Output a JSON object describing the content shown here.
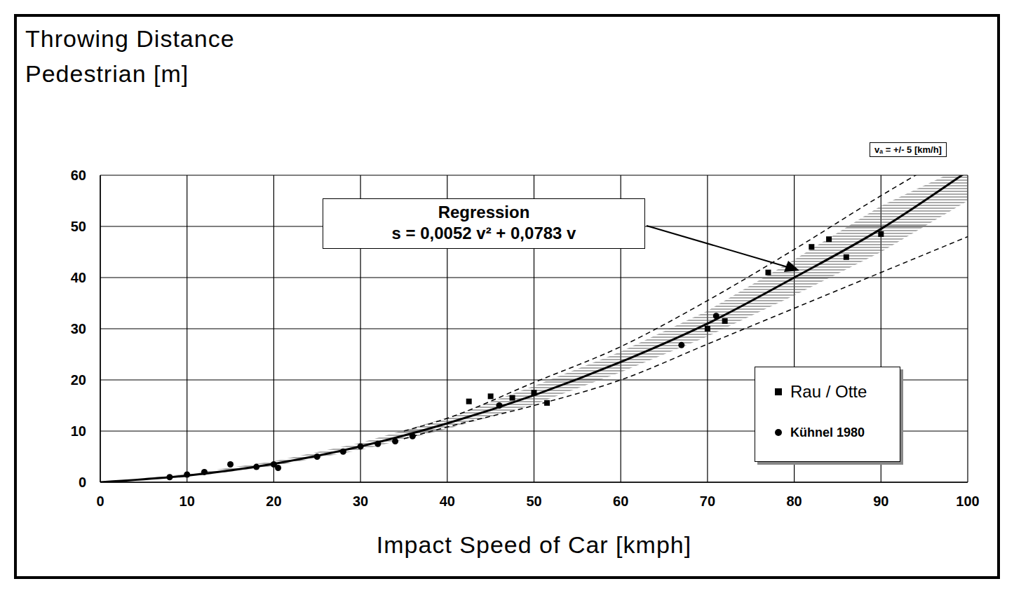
{
  "chart_data": {
    "type": "scatter",
    "y_label": "Throwing Distance Pedestrian [m]",
    "x_label": "Impact Speed of Car [kmph]",
    "annotation": {
      "title": "Regression",
      "text": "s = 0,0052 v² + 0,0783 v"
    },
    "note": "vₐ = +/- 5 [km/h]",
    "xlim": [
      0,
      100
    ],
    "xticks": [
      0,
      10,
      20,
      30,
      40,
      50,
      60,
      70,
      80,
      90,
      100
    ],
    "ylim": [
      0,
      60
    ],
    "yticks": [
      0,
      10,
      20,
      30,
      40,
      50,
      60
    ],
    "grid": true,
    "legend": "lower right",
    "series": [
      {
        "name": "Rau / Otte",
        "type": "scatter",
        "marker": "square",
        "color": "#000000",
        "x": [
          42.5,
          45,
          47.5,
          50,
          51.5,
          70,
          72,
          77,
          82,
          84,
          86,
          90
        ],
        "values": [
          15.8,
          16.8,
          16.5,
          17.5,
          15.5,
          30,
          31.5,
          41,
          46,
          47.5,
          44,
          48.5
        ]
      },
      {
        "name": "Kühnel 1980",
        "type": "scatter",
        "marker": "circle",
        "color": "#000000",
        "x": [
          8,
          10,
          12,
          15,
          18,
          20,
          20.5,
          25,
          28,
          30,
          32,
          34,
          36,
          46,
          67,
          71
        ],
        "values": [
          1,
          1.5,
          2,
          3.5,
          3,
          3.5,
          2.8,
          5,
          6,
          7,
          7.5,
          8,
          9,
          15,
          26.8,
          32.5
        ]
      }
    ],
    "lines": [
      {
        "type": "line",
        "line_style": "solid",
        "color": "#000000",
        "x": [
          0,
          10,
          20,
          30,
          40,
          50,
          60,
          70,
          80,
          90,
          100
        ],
        "values": [
          0,
          1.3,
          3.6,
          7,
          11.5,
          17,
          23.5,
          31,
          40,
          49.5,
          60.8
        ]
      },
      {
        "type": "line",
        "line_style": "dashed",
        "color": "#000000",
        "x": [
          35,
          40,
          50,
          60,
          70,
          80,
          90,
          95
        ],
        "values": [
          10,
          12.5,
          19.5,
          26.5,
          35.5,
          45.5,
          56,
          61
        ]
      },
      {
        "type": "line",
        "line_style": "dashed",
        "color": "#000000",
        "x": [
          35,
          40,
          50,
          60,
          70,
          80,
          90,
          100
        ],
        "values": [
          8.5,
          10.8,
          15,
          20,
          27,
          34,
          41,
          48
        ]
      }
    ],
    "band": {
      "type": "area",
      "color": "#555555",
      "x": [
        0,
        10,
        20,
        30,
        40,
        50,
        60,
        70,
        80,
        90,
        100
      ],
      "low": [
        0,
        1,
        3.2,
        6.3,
        10.4,
        15.2,
        21.5,
        28.5,
        36.5,
        45,
        55
      ],
      "high": [
        0,
        1.6,
        4.1,
        7.7,
        12.6,
        18.8,
        25.5,
        33.5,
        43.5,
        54,
        62
      ]
    }
  }
}
